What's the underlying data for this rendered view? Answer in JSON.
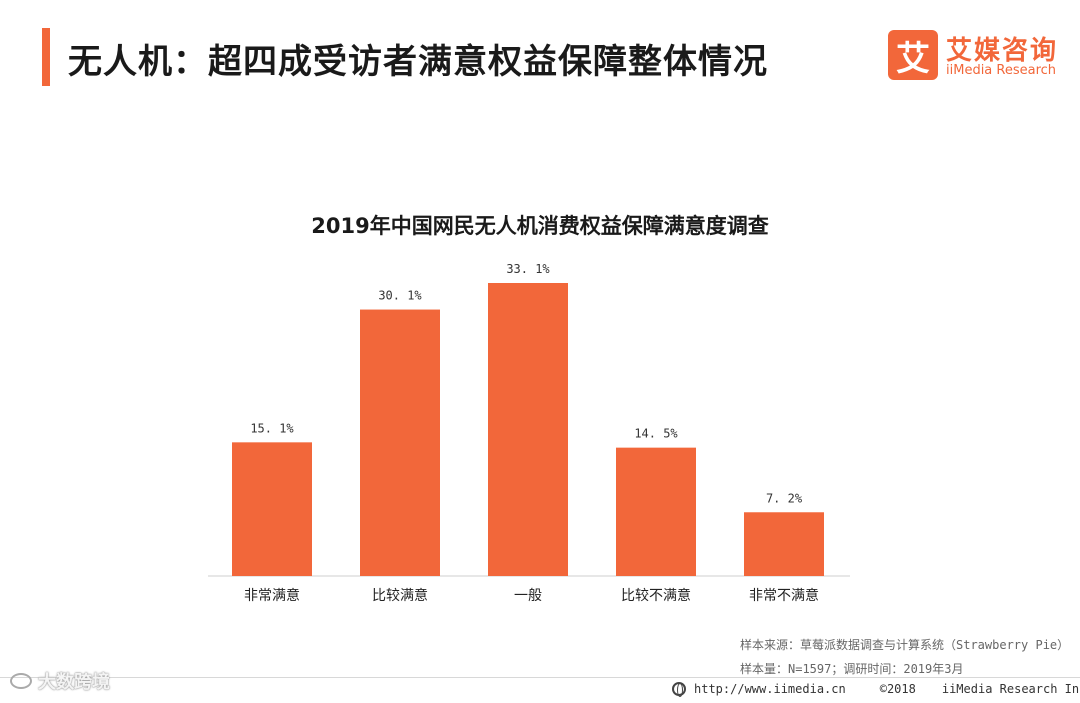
{
  "header": {
    "title": "无人机：超四成受访者满意权益保障整体情况",
    "accent_color": "#f2673a"
  },
  "logo": {
    "badge_char": "艾",
    "name_cn": "艾媒咨询",
    "name_en": "iiMedia Research"
  },
  "chart_data": {
    "type": "bar",
    "title": "2019年中国网民无人机消费权益保障满意度调查",
    "categories": [
      "非常满意",
      "比较满意",
      "一般",
      "比较不满意",
      "非常不满意"
    ],
    "values": [
      15.1,
      30.1,
      33.1,
      14.5,
      7.2
    ],
    "value_labels": [
      "15. 1%",
      "30. 1%",
      "33. 1%",
      "14. 5%",
      "7. 2%"
    ],
    "unit": "%",
    "ylim": [
      0,
      35
    ],
    "grid": false,
    "legend": "none",
    "bar_color": "#f2673a"
  },
  "notes": {
    "source": "样本来源：草莓派数据调查与计算系统（Strawberry Pie）",
    "sample": "样本量：N=1597；调研时间：2019年3月"
  },
  "footer": {
    "url": "http://www.iimedia.cn",
    "copyright": "©2018",
    "company": "iiMedia Research Inc"
  },
  "watermark": {
    "text": "大数跨境"
  }
}
